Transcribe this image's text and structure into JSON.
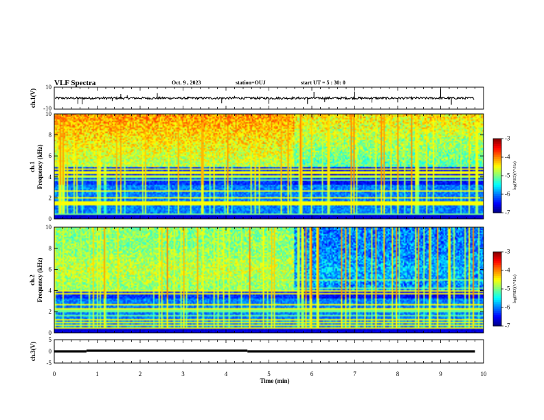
{
  "header": {
    "title": "VLF Spectra",
    "date": "Oct. 9 , 2023",
    "station": "station=OUJ",
    "start": "start UT = 5 : 30: 0"
  },
  "chart_data": [
    {
      "type": "line",
      "panel": "ch1-waveform",
      "ylabel": "ch.1(V)",
      "ylim": [
        -10,
        10
      ],
      "yticks": [
        10,
        -10
      ],
      "xlim": [
        0,
        10
      ],
      "baseline": 0,
      "noise_band": [
        -1,
        1
      ],
      "spikes_x": [
        0.55,
        0.65,
        1.35,
        1.55,
        1.7,
        2.4,
        3.9,
        4.2,
        5.0,
        5.9,
        6.05,
        6.3,
        7.0,
        7.4,
        8.0,
        9.0,
        9.25
      ]
    },
    {
      "type": "heatmap",
      "panel": "ch1-spectrogram",
      "ylabel": "ch.1 Frequency (kHz)",
      "ylim": [
        0,
        10
      ],
      "yticks": [
        "0",
        "2",
        "4",
        "6",
        "8",
        "10"
      ],
      "xlim": [
        0,
        10
      ],
      "colorbar": {
        "label": "log(PSD)(V²/Hz)",
        "range": [
          -7,
          -3
        ],
        "ticks": [
          "-3",
          "-4",
          "-5",
          "-6",
          "-7"
        ]
      },
      "strong_emission_band_khz": [
        5,
        10
      ],
      "transition_minute": 5.6
    },
    {
      "type": "heatmap",
      "panel": "ch2-spectrogram",
      "ylabel": "ch.2 Frequency (kHz)",
      "ylim": [
        0,
        10
      ],
      "yticks": [
        "0",
        "2",
        "4",
        "6",
        "8",
        "10"
      ],
      "xlim": [
        0,
        10
      ],
      "colorbar": {
        "label": "log(PSD)(V²/Hz)",
        "range": [
          -7,
          -3
        ],
        "ticks": [
          "-3",
          "-4",
          "-5",
          "-6",
          "-7"
        ]
      },
      "strong_emission_band_khz": [
        4,
        8
      ],
      "transition_minute": 5.6
    },
    {
      "type": "line",
      "panel": "ch3-level",
      "ylabel": "ch.3(V)",
      "ylim": [
        -5,
        5
      ],
      "yticks": [
        "5",
        "0",
        "-5"
      ],
      "xlim": [
        0,
        10
      ],
      "segments": [
        {
          "x": [
            0.0,
            0.75
          ],
          "y": 0.0
        },
        {
          "x": [
            0.75,
            4.5
          ],
          "y": 0.3
        },
        {
          "x": [
            4.5,
            9.8
          ],
          "y": 0.0
        }
      ],
      "xlabel": "Time (min)",
      "xticks": [
        "0",
        "1",
        "2",
        "3",
        "4",
        "5",
        "6",
        "7",
        "8",
        "9",
        "10"
      ]
    }
  ]
}
